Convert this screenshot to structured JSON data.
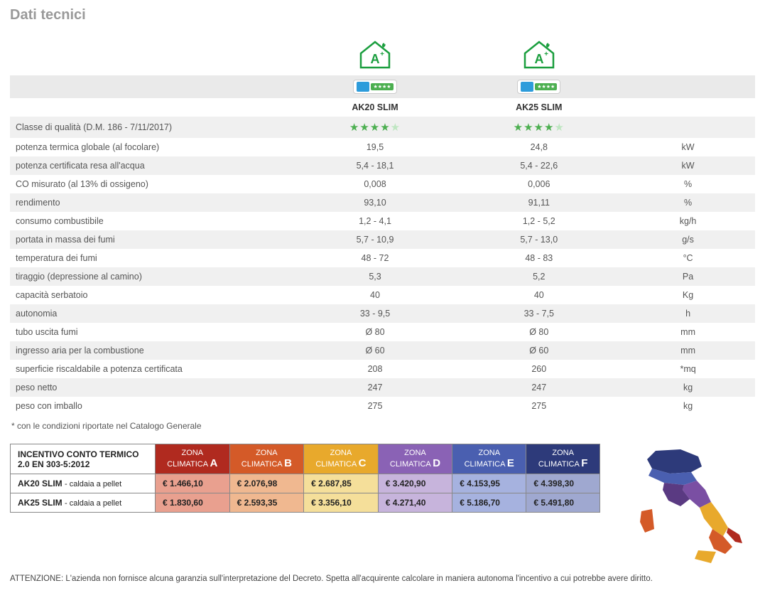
{
  "title": "Dati tecnici",
  "models": [
    "AK20 SLIM",
    "AK25 SLIM"
  ],
  "house_icon": {
    "label": "A+",
    "color": "#1a9e3e"
  },
  "quality_stars": {
    "filled": 4,
    "total": 5,
    "color": "#4caf50"
  },
  "spec_rows": [
    {
      "label": "Classe di qualità (D.M. 186 - 7/11/2017)",
      "vals": [
        "__STARS__",
        "__STARS__"
      ],
      "unit": "",
      "striped": true
    },
    {
      "label": "potenza termica globale (al focolare)",
      "vals": [
        "19,5",
        "24,8"
      ],
      "unit": "kW",
      "striped": false
    },
    {
      "label": "potenza certificata resa all'acqua",
      "vals": [
        "5,4 - 18,1",
        "5,4 - 22,6"
      ],
      "unit": "kW",
      "striped": true
    },
    {
      "label": "CO misurato (al 13% di ossigeno)",
      "vals": [
        "0,008",
        "0,006"
      ],
      "unit": "%",
      "striped": false
    },
    {
      "label": "rendimento",
      "vals": [
        "93,10",
        "91,11"
      ],
      "unit": "%",
      "striped": true
    },
    {
      "label": "consumo combustibile",
      "vals": [
        "1,2 - 4,1",
        "1,2 - 5,2"
      ],
      "unit": "kg/h",
      "striped": false
    },
    {
      "label": "portata in massa dei fumi",
      "vals": [
        "5,7 - 10,9",
        "5,7 - 13,0"
      ],
      "unit": "g/s",
      "striped": true
    },
    {
      "label": "temperatura dei fumi",
      "vals": [
        "48 - 72",
        "48 - 83"
      ],
      "unit": "°C",
      "striped": false
    },
    {
      "label": "tiraggio (depressione al camino)",
      "vals": [
        "5,3",
        "5,2"
      ],
      "unit": "Pa",
      "striped": true
    },
    {
      "label": "capacità serbatoio",
      "vals": [
        "40",
        "40"
      ],
      "unit": "Kg",
      "striped": false
    },
    {
      "label": "autonomia",
      "vals": [
        "33 - 9,5",
        "33 - 7,5"
      ],
      "unit": "h",
      "striped": true
    },
    {
      "label": "tubo uscita fumi",
      "vals": [
        "Ø 80",
        "Ø 80"
      ],
      "unit": "mm",
      "striped": false
    },
    {
      "label": "ingresso aria per la combustione",
      "vals": [
        "Ø 60",
        "Ø 60"
      ],
      "unit": "mm",
      "striped": true
    },
    {
      "label": "superficie riscaldabile a potenza certificata",
      "vals": [
        "208",
        "260"
      ],
      "unit": "*mq",
      "striped": false
    },
    {
      "label": "peso netto",
      "vals": [
        "247",
        "247"
      ],
      "unit": "kg",
      "striped": true
    },
    {
      "label": "peso con imballo",
      "vals": [
        "275",
        "275"
      ],
      "unit": "kg",
      "striped": false
    }
  ],
  "footnote": "* con le condizioni riportate nel Catalogo Generale",
  "incentive": {
    "header": "INCENTIVO CONTO TERMICO 2.0",
    "header_sub": "EN 303-5:2012",
    "zones": [
      {
        "prefix": "ZONA CLIMATICA",
        "letter": "A",
        "color": "#b02a1f"
      },
      {
        "prefix": "ZONA CLIMATICA",
        "letter": "B",
        "color": "#d45a28"
      },
      {
        "prefix": "ZONA CLIMATICA",
        "letter": "C",
        "color": "#e8a92c"
      },
      {
        "prefix": "ZONA CLIMATICA",
        "letter": "D",
        "color": "#8a62b5"
      },
      {
        "prefix": "ZONA CLIMATICA",
        "letter": "E",
        "color": "#4a5fb0"
      },
      {
        "prefix": "ZONA CLIMATICA",
        "letter": "F",
        "color": "#2d3a7a"
      }
    ],
    "rows": [
      {
        "label": "AK20 SLIM",
        "sub": "- caldaia a pellet",
        "prices": [
          "€ 1.466,10",
          "€ 2.076,98",
          "€ 2.687,85",
          "€ 3.420,90",
          "€ 4.153,95",
          "€ 4.398,30"
        ]
      },
      {
        "label": "AK25 SLIM",
        "sub": "- caldaia a pellet",
        "prices": [
          "€ 1.830,60",
          "€ 2.593,35",
          "€ 3.356,10",
          "€ 4.271,40",
          "€ 5.186,70",
          "€ 5.491,80"
        ]
      }
    ],
    "cell_colors": [
      "#e9a08f",
      "#f0b890",
      "#f5df9a",
      "#c7b4dc",
      "#a6b2df",
      "#9fa8d0"
    ]
  },
  "map_colors": {
    "north_blue": "#2d3a7a",
    "mid_blue": "#4a5fb0",
    "purple": "#7a4fa3",
    "dark_purple": "#5a3a82",
    "yellow": "#e8a92c",
    "orange": "#d45a28",
    "red": "#b02a1f"
  },
  "attention": "ATTENZIONE:  L'azienda non fornisce alcuna garanzia sull'interpretazione del Decreto. Spetta all'acquirente calcolare in maniera autonoma l'incentivo a cui potrebbe avere diritto."
}
